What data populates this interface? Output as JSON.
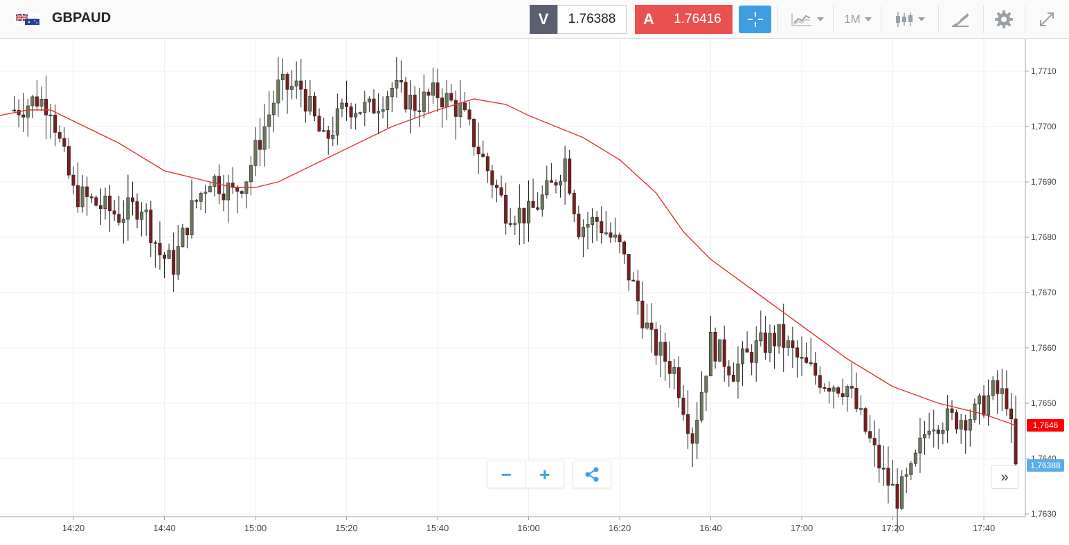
{
  "instrument": {
    "flag_icon": "gb-au-flag-icon",
    "symbol": "GBPAUD"
  },
  "quote": {
    "sell_label": "V",
    "sell_price": "1.76388",
    "buy_label": "A",
    "buy_price": "1.76416"
  },
  "toolbar": {
    "crosshair_icon": "crosshair-icon",
    "chart_type_icon": "line-chart-icon",
    "timeframe": "1M",
    "candle_icon": "candlestick-icon",
    "draw_icon": "drawing-tool-icon",
    "settings_icon": "gear-icon",
    "fullscreen_icon": "expand-icon"
  },
  "controls": {
    "zoom_out": "−",
    "zoom_in": "+",
    "share_icon": "share-icon",
    "scroll_right": "»"
  },
  "colors": {
    "up_candle": "#6b7a5e",
    "down_candle": "#7a1f1c",
    "moving_average": "#e8312f",
    "ma_label_bg": "#ff0000",
    "last_price_bg": "#5aaee8",
    "buy_red": "#e8514e",
    "crosshair_blue": "#3d9fe0"
  },
  "chart_data": {
    "type": "candlestick",
    "title": "GBPAUD",
    "timeframe": "1M",
    "x_ticks": [
      "14:20",
      "14:40",
      "15:00",
      "15:20",
      "15:40",
      "16:00",
      "16:20",
      "16:40",
      "17:00",
      "17:20",
      "17:40"
    ],
    "y_ticks": [
      "1,7630",
      "1,7640",
      "1,7650",
      "1,7660",
      "1,7670",
      "1,7680",
      "1,7690",
      "1,7700",
      "1,7710"
    ],
    "ylim": [
      1.76295,
      1.77165
    ],
    "grid": true,
    "ma_label": "1,7646",
    "last_price_label": "1,76388",
    "close_path": [
      [
        "14:07",
        1.7703
      ],
      [
        "14:12",
        1.7705
      ],
      [
        "14:15",
        1.7704
      ],
      [
        "14:17",
        1.7697
      ],
      [
        "14:20",
        1.7688
      ],
      [
        "14:25",
        1.7686
      ],
      [
        "14:30",
        1.7684
      ],
      [
        "14:35",
        1.7686
      ],
      [
        "14:39",
        1.7677
      ],
      [
        "14:42",
        1.7675
      ],
      [
        "14:46",
        1.7685
      ],
      [
        "14:50",
        1.7691
      ],
      [
        "14:55",
        1.7688
      ],
      [
        "14:58",
        1.7691
      ],
      [
        "15:02",
        1.77
      ],
      [
        "15:05",
        1.7707
      ],
      [
        "15:10",
        1.7707
      ],
      [
        "15:15",
        1.7697
      ],
      [
        "15:20",
        1.7704
      ],
      [
        "15:25",
        1.7703
      ],
      [
        "15:30",
        1.7707
      ],
      [
        "15:35",
        1.7704
      ],
      [
        "15:40",
        1.7706
      ],
      [
        "15:45",
        1.7703
      ],
      [
        "15:50",
        1.7694
      ],
      [
        "15:55",
        1.7685
      ],
      [
        "16:00",
        1.7684
      ],
      [
        "16:05",
        1.7689
      ],
      [
        "16:08",
        1.7694
      ],
      [
        "16:11",
        1.7682
      ],
      [
        "16:15",
        1.7683
      ],
      [
        "16:20",
        1.7678
      ],
      [
        "16:23",
        1.7671
      ],
      [
        "16:27",
        1.7661
      ],
      [
        "16:32",
        1.7656
      ],
      [
        "16:36",
        1.7644
      ],
      [
        "16:40",
        1.7661
      ],
      [
        "16:45",
        1.7656
      ],
      [
        "16:50",
        1.766
      ],
      [
        "16:55",
        1.7662
      ],
      [
        "17:00",
        1.7657
      ],
      [
        "17:05",
        1.7654
      ],
      [
        "17:10",
        1.7653
      ],
      [
        "17:15",
        1.7643
      ],
      [
        "17:18",
        1.7637
      ],
      [
        "17:21",
        1.7633
      ],
      [
        "17:24",
        1.7637
      ],
      [
        "17:28",
        1.7647
      ],
      [
        "17:33",
        1.7647
      ],
      [
        "17:38",
        1.7648
      ],
      [
        "17:42",
        1.7652
      ],
      [
        "17:45",
        1.7651
      ],
      [
        "17:47",
        1.7639
      ]
    ],
    "moving_average": [
      [
        "14:00",
        1.7702
      ],
      [
        "14:10",
        1.7703
      ],
      [
        "14:15",
        1.7703
      ],
      [
        "14:20",
        1.7701
      ],
      [
        "14:30",
        1.7697
      ],
      [
        "14:40",
        1.7692
      ],
      [
        "14:50",
        1.769
      ],
      [
        "14:55",
        1.7689
      ],
      [
        "15:00",
        1.7689
      ],
      [
        "15:05",
        1.769
      ],
      [
        "15:10",
        1.7692
      ],
      [
        "15:15",
        1.7694
      ],
      [
        "15:20",
        1.7696
      ],
      [
        "15:30",
        1.77
      ],
      [
        "15:40",
        1.7703
      ],
      [
        "15:48",
        1.7705
      ],
      [
        "15:55",
        1.7704
      ],
      [
        "16:00",
        1.7702
      ],
      [
        "16:06",
        1.77
      ],
      [
        "16:12",
        1.7698
      ],
      [
        "16:20",
        1.7694
      ],
      [
        "16:28",
        1.7688
      ],
      [
        "16:34",
        1.7681
      ],
      [
        "16:40",
        1.7676
      ],
      [
        "16:50",
        1.767
      ],
      [
        "17:00",
        1.7664
      ],
      [
        "17:10",
        1.7658
      ],
      [
        "17:20",
        1.7653
      ],
      [
        "17:30",
        1.765
      ],
      [
        "17:40",
        1.7648
      ],
      [
        "17:47",
        1.7646
      ]
    ]
  }
}
